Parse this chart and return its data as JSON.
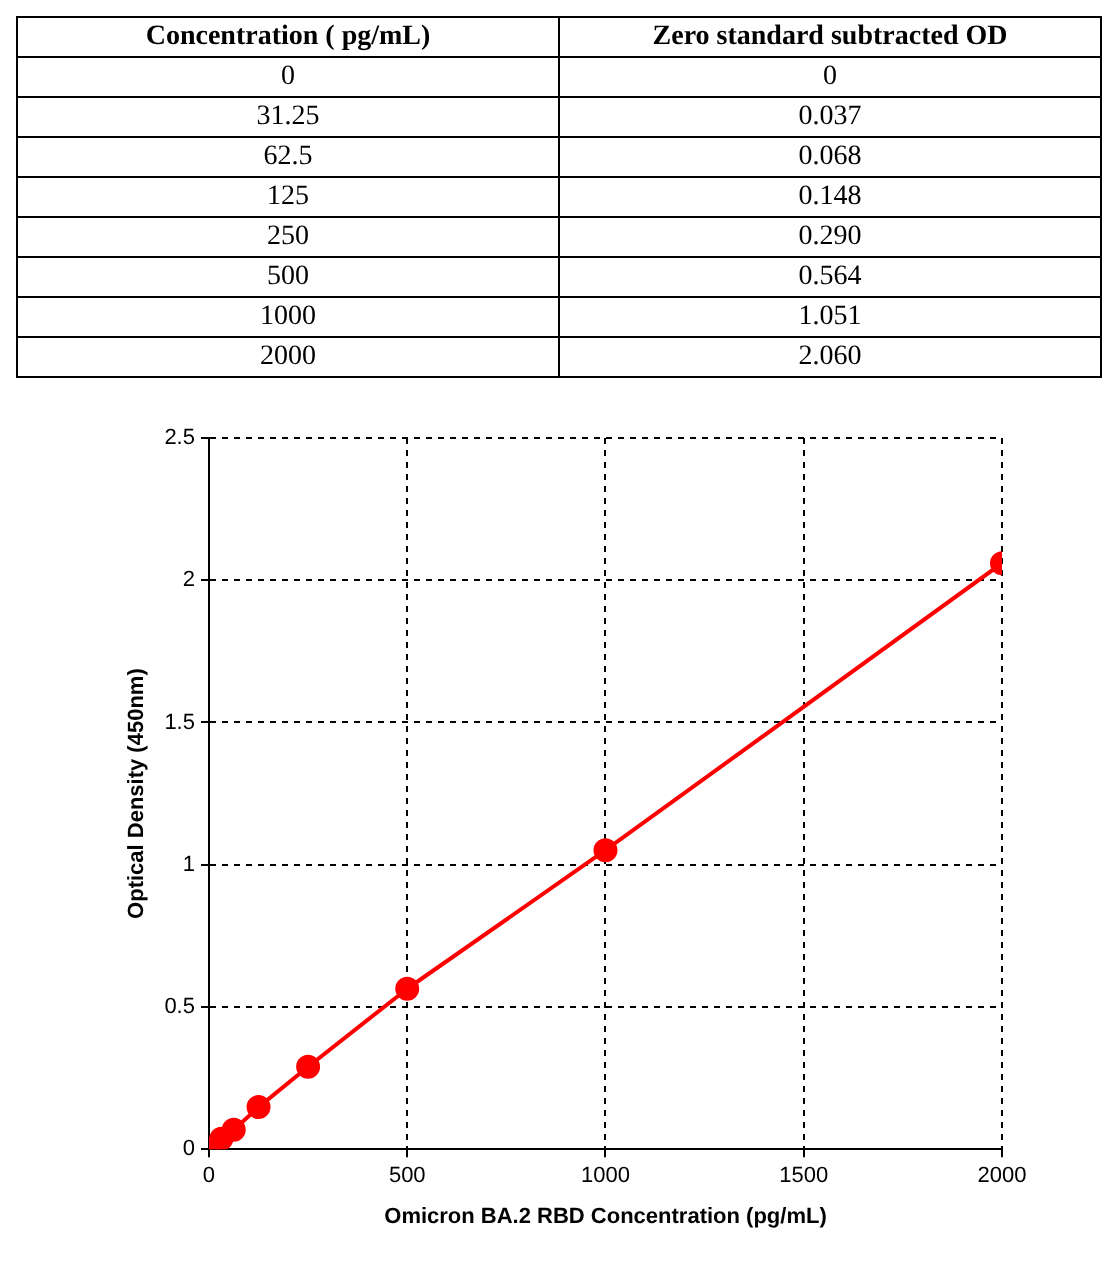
{
  "chart_data": {
    "type": "line",
    "xlabel": "Omicron BA.2 RBD Concentration (pg/mL)",
    "ylabel": "Optical Density (450nm)",
    "annotations": [
      "Concentration ( pg/mL)",
      "Zero standard subtracted OD",
      "0",
      "0",
      "31.25",
      "0.037",
      "62.5",
      "0.068",
      "125",
      "0.148",
      "250",
      "0.290",
      "500",
      "0.564",
      "1000",
      "1.051",
      "2000",
      "2.060"
    ],
    "x": [
      0,
      31.25,
      62.5,
      125,
      250,
      500,
      1000,
      2000
    ],
    "series": [
      {
        "color": "#ff0000",
        "values": [
          0,
          0.037,
          0.068,
          0.148,
          0.29,
          0.564,
          1.051,
          2.06
        ]
      }
    ],
    "xlim": [
      0,
      2000
    ],
    "xticks": [
      0,
      500,
      1000,
      1500,
      2000
    ],
    "ylim": [
      0,
      2.5
    ],
    "yticks": [
      0,
      0.5,
      1,
      1.5,
      2,
      2.5
    ],
    "grid": true,
    "legend": false,
    "marker": "circle",
    "line_style": "solid"
  }
}
